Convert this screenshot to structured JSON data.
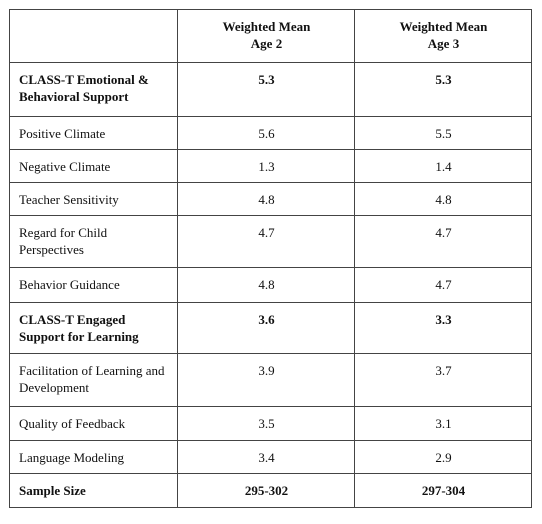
{
  "table": {
    "header": [
      "Weighted Mean Age 2",
      "Weighted Mean Age 3"
    ],
    "rows": [
      {
        "label": "CLASS-T Emotional & Behavioral Support",
        "values": [
          5.3,
          5.3
        ]
      },
      {
        "label": "Positive Climate",
        "values": [
          5.6,
          5.5
        ]
      },
      {
        "label": "Negative Climate",
        "values": [
          1.3,
          1.4
        ]
      },
      {
        "label": "Teacher Sensitivity",
        "values": [
          4.8,
          4.8
        ]
      },
      {
        "label": "Regard for Child Perspectives",
        "values": [
          4.7,
          4.7
        ]
      },
      {
        "label": "Behavior Guidance",
        "values": [
          4.8,
          4.7
        ]
      },
      {
        "label": "CLASS-T Engaged Support for Learning",
        "values": [
          3.6,
          3.3
        ]
      },
      {
        "label": "Facilitation of Learning and Development",
        "values": [
          3.9,
          3.7
        ]
      },
      {
        "label": "Quality of Feedback",
        "values": [
          3.5,
          3.1
        ]
      },
      {
        "label": "Language Modeling",
        "values": [
          3.4,
          2.9
        ]
      }
    ],
    "footer": {
      "label": "Sample Size",
      "values": [
        "295-302",
        "297-304"
      ]
    }
  }
}
